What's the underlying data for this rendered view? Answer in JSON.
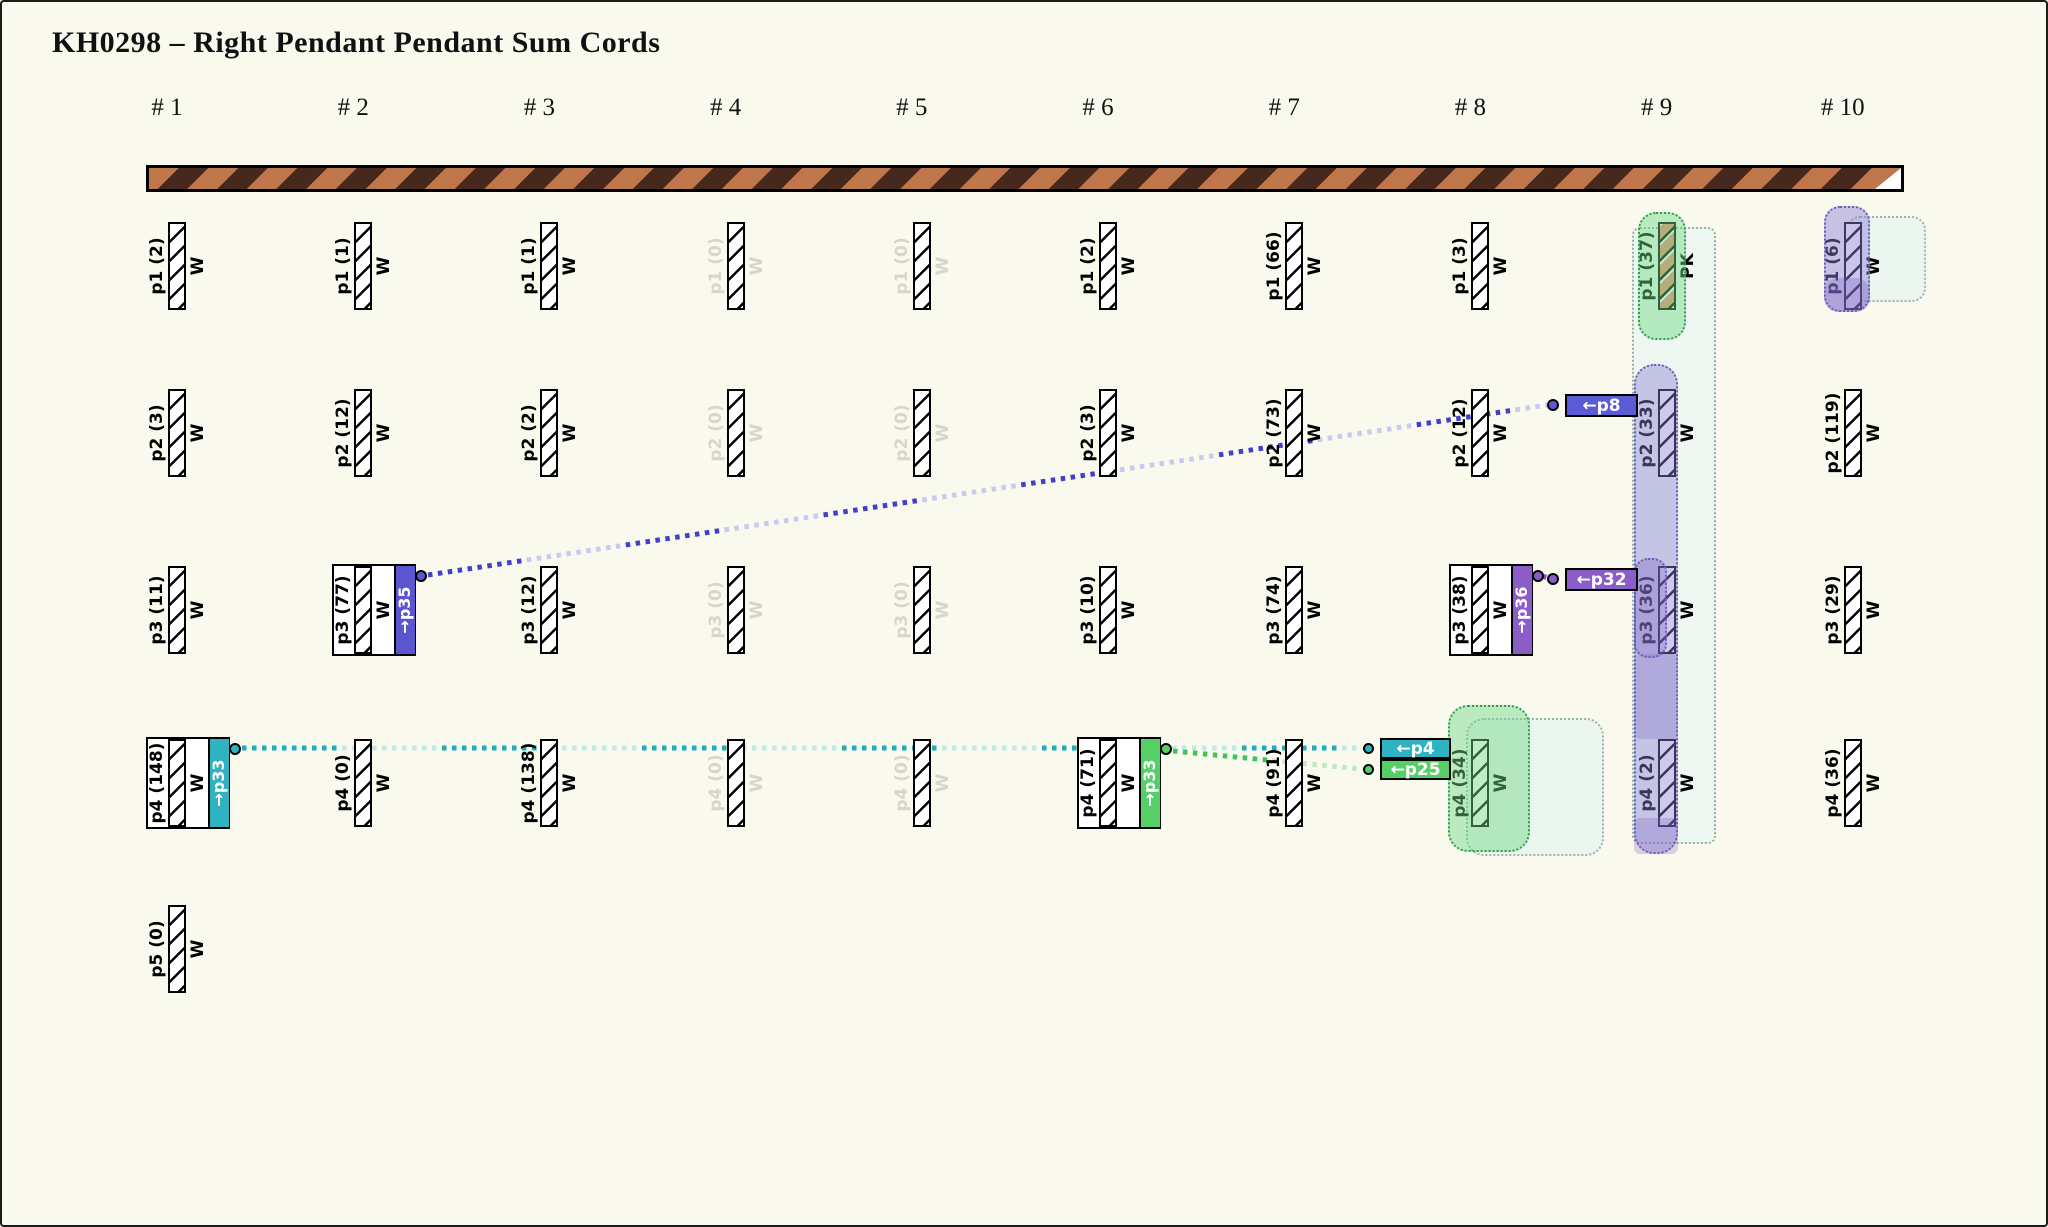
{
  "title": "KH0298 – Right Pendant Pendant Sum Cords",
  "colors": {
    "background": "#faf9ee",
    "primary_cord_light": "#c0764b",
    "primary_cord_dark": "#46291c",
    "teal": "#2fb3c2",
    "green": "#56cf66",
    "indigo": "#5b55d0",
    "blue": "#5b5bd6",
    "purple": "#8a5ec6",
    "pk_red": "#f18a7c",
    "faded_gray": "#d6d6cd"
  },
  "primary_cord": {
    "name": "primary-cord"
  },
  "columns": [
    {
      "header": "# 1",
      "pendants": [
        {
          "id": "p1",
          "label": "p1 (2)",
          "cord": "W"
        },
        {
          "id": "p2",
          "label": "p2 (3)",
          "cord": "W"
        },
        {
          "id": "p3",
          "label": "p3 (11)",
          "cord": "W"
        },
        {
          "id": "p4",
          "label": "p4 (148)",
          "cord": "W",
          "attachment": {
            "label": "→p33",
            "color": "#2fb3c2"
          }
        },
        {
          "id": "p5",
          "label": "p5 (0)",
          "cord": "W"
        }
      ]
    },
    {
      "header": "# 2",
      "pendants": [
        {
          "id": "p1",
          "label": "p1 (1)",
          "cord": "W"
        },
        {
          "id": "p2",
          "label": "p2 (12)",
          "cord": "W"
        },
        {
          "id": "p3",
          "label": "p3 (77)",
          "cord": "W",
          "attachment": {
            "label": "→p35",
            "color": "#5b55d0"
          }
        },
        {
          "id": "p4",
          "label": "p4 (0)",
          "cord": "W"
        }
      ]
    },
    {
      "header": "# 3",
      "pendants": [
        {
          "id": "p1",
          "label": "p1 (1)",
          "cord": "W"
        },
        {
          "id": "p2",
          "label": "p2 (2)",
          "cord": "W"
        },
        {
          "id": "p3",
          "label": "p3 (12)",
          "cord": "W"
        },
        {
          "id": "p4",
          "label": "p4 (138)",
          "cord": "W"
        }
      ]
    },
    {
      "header": "# 4",
      "pendants": [
        {
          "id": "p1",
          "label": "p1 (0)",
          "cord": "W",
          "faded": true
        },
        {
          "id": "p2",
          "label": "p2 (0)",
          "cord": "W",
          "faded": true
        },
        {
          "id": "p3",
          "label": "p3 (0)",
          "cord": "W",
          "faded": true
        },
        {
          "id": "p4",
          "label": "p4 (0)",
          "cord": "W",
          "faded": true
        }
      ]
    },
    {
      "header": "# 5",
      "pendants": [
        {
          "id": "p1",
          "label": "p1 (0)",
          "cord": "W",
          "faded": true
        },
        {
          "id": "p2",
          "label": "p2 (0)",
          "cord": "W",
          "faded": true
        },
        {
          "id": "p3",
          "label": "p3 (0)",
          "cord": "W",
          "faded": true
        },
        {
          "id": "p4",
          "label": "p4 (0)",
          "cord": "W",
          "faded": true
        }
      ]
    },
    {
      "header": "# 6",
      "pendants": [
        {
          "id": "p1",
          "label": "p1 (2)",
          "cord": "W"
        },
        {
          "id": "p2",
          "label": "p2 (3)",
          "cord": "W"
        },
        {
          "id": "p3",
          "label": "p3 (10)",
          "cord": "W"
        },
        {
          "id": "p4",
          "label": "p4 (71)",
          "cord": "W",
          "attachment": {
            "label": "→p33",
            "color": "#56cf66"
          }
        }
      ]
    },
    {
      "header": "# 7",
      "pendants": [
        {
          "id": "p1",
          "label": "p1 (66)",
          "cord": "W"
        },
        {
          "id": "p2",
          "label": "p2 (73)",
          "cord": "W"
        },
        {
          "id": "p3",
          "label": "p3 (74)",
          "cord": "W"
        },
        {
          "id": "p4",
          "label": "p4 (91)",
          "cord": "W"
        }
      ]
    },
    {
      "header": "# 8",
      "pendants": [
        {
          "id": "p1",
          "label": "p1 (3)",
          "cord": "W"
        },
        {
          "id": "p2",
          "label": "p2 (12)",
          "cord": "W"
        },
        {
          "id": "p3",
          "label": "p3 (38)",
          "cord": "W",
          "attachment": {
            "label": "→p36",
            "color": "#8a5ec6"
          }
        },
        {
          "id": "p4",
          "label": "p4 (34)",
          "cord": "W"
        }
      ]
    },
    {
      "header": "# 9",
      "pendants": [
        {
          "id": "p1",
          "label": "p1 (37)",
          "cord": "PK"
        },
        {
          "id": "p2",
          "label": "p2 (33)",
          "cord": "W"
        },
        {
          "id": "p3",
          "label": "p3 (36)",
          "cord": "W"
        },
        {
          "id": "p4",
          "label": "p4 (2)",
          "cord": "W"
        }
      ]
    },
    {
      "header": "# 10",
      "pendants": [
        {
          "id": "p1",
          "label": "p1 (6)",
          "cord": "W"
        },
        {
          "id": "p2",
          "label": "p2 (119)",
          "cord": "W"
        },
        {
          "id": "p3",
          "label": "p3 (29)",
          "cord": "W"
        },
        {
          "id": "p4",
          "label": "p4 (36)",
          "cord": "W"
        }
      ]
    }
  ],
  "annotations": [
    {
      "label": "←p8",
      "color": "#5b5bd6"
    },
    {
      "label": "←p32",
      "color": "#8a5ec6"
    },
    {
      "label": "←p4",
      "color": "#2fb3c2"
    },
    {
      "label": "←p25",
      "color": "#56cf66"
    }
  ],
  "connectors": [
    {
      "name": "cord-link-p35-to-p8",
      "dark": "#4040cc",
      "light": "#c9c9f2"
    },
    {
      "name": "cord-link-p33-to-p4",
      "dark": "#1fadbc",
      "light": "#c2e9e9"
    },
    {
      "name": "cord-link-p33-to-p25",
      "dark": "#3fc658",
      "light": "#bdeabf"
    },
    {
      "name": "cord-link-p36-to-p32",
      "dark": "#7a4fc0",
      "light": "#7a4fc0"
    }
  ],
  "highlights": [
    {
      "name": "col9-column-band",
      "fill": "#eef7f1",
      "border": "#97b2a2"
    },
    {
      "name": "col8-p4-pale-blob",
      "fill": "#ecf6f1",
      "border": "#9db5a8"
    },
    {
      "name": "col10-p1-pale-blob",
      "fill": "#ecf6f1",
      "border": "#9db5a8"
    },
    {
      "name": "col9-p1-green-blob",
      "fill": "rgba(110,216,130,0.45)",
      "border": "#2f9e53"
    },
    {
      "name": "col9-p2-p4-lavender-strip",
      "fill": "rgba(138,127,212,0.42)",
      "border": "#6a5fb8"
    },
    {
      "name": "col9-p3-lavender-patch",
      "fill": "rgba(118,94,195,0.33)",
      "border": "#6a5fb8"
    },
    {
      "name": "col9-gap-lavender-patch",
      "fill": "rgba(118,94,195,0.26)",
      "border": "transparent"
    },
    {
      "name": "col9-bottom-lavender-patch",
      "fill": "rgba(118,94,195,0.26)",
      "border": "transparent"
    },
    {
      "name": "col8-p4-green-blob",
      "fill": "rgba(110,216,130,0.45)",
      "border": "#2f9e53"
    },
    {
      "name": "col10-p1-lavender-blob",
      "fill": "rgba(138,127,212,0.45)",
      "border": "#6a5fb8"
    },
    {
      "name": "col10-p1-lavender-cap",
      "fill": "rgba(118,94,195,0.30)",
      "border": "transparent"
    }
  ]
}
